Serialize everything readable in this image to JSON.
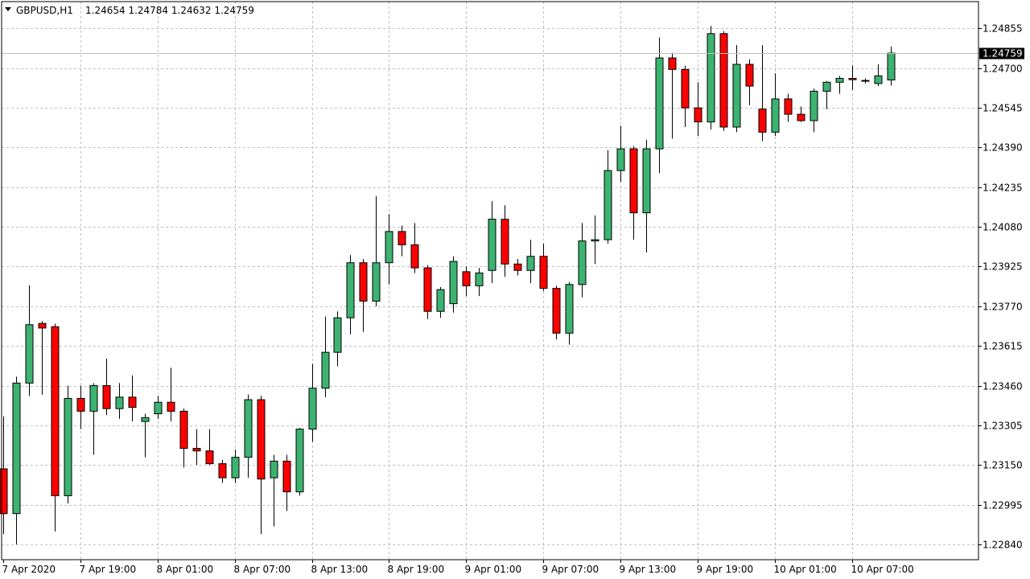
{
  "header": {
    "symbol": "GBPUSD,H1",
    "ohlc": "1.24654 1.24784 1.24632 1.24759"
  },
  "colors": {
    "bull": "#3cb371",
    "bear": "#ff0000",
    "grid": "#c0c0c0",
    "frame": "#000000",
    "tag_bg": "#000000"
  },
  "chart_data": {
    "type": "candlestick",
    "title": "GBPUSD,H1",
    "current_price": 1.24759,
    "current_price_label": "1.24759",
    "ylim": [
      1.2278,
      1.2496
    ],
    "y_ticks": [
      "1.24855",
      "1.24700",
      "1.24545",
      "1.24390",
      "1.24235",
      "1.24080",
      "1.23925",
      "1.23770",
      "1.23615",
      "1.23460",
      "1.23305",
      "1.23150",
      "1.22995",
      "1.22840"
    ],
    "x_ticks": [
      {
        "label": "7 Apr 2020",
        "index": 0
      },
      {
        "label": "7 Apr 19:00",
        "index": 6
      },
      {
        "label": "8 Apr 01:00",
        "index": 12
      },
      {
        "label": "8 Apr 07:00",
        "index": 18
      },
      {
        "label": "8 Apr 13:00",
        "index": 24
      },
      {
        "label": "8 Apr 19:00",
        "index": 30
      },
      {
        "label": "9 Apr 01:00",
        "index": 36
      },
      {
        "label": "9 Apr 07:00",
        "index": 42
      },
      {
        "label": "9 Apr 13:00",
        "index": 48
      },
      {
        "label": "9 Apr 19:00",
        "index": 54
      },
      {
        "label": "10 Apr 01:00",
        "index": 60
      },
      {
        "label": "10 Apr 07:00",
        "index": 66
      }
    ],
    "candles": [
      {
        "o": 1.23135,
        "h": 1.2334,
        "l": 1.2288,
        "c": 1.2296
      },
      {
        "o": 1.2296,
        "h": 1.23495,
        "l": 1.2284,
        "c": 1.2347
      },
      {
        "o": 1.2347,
        "h": 1.23852,
        "l": 1.2342,
        "c": 1.23698
      },
      {
        "o": 1.23703,
        "h": 1.23712,
        "l": 1.23425,
        "c": 1.23685
      },
      {
        "o": 1.2369,
        "h": 1.23702,
        "l": 1.2289,
        "c": 1.2303
      },
      {
        "o": 1.2303,
        "h": 1.2346,
        "l": 1.23,
        "c": 1.2341
      },
      {
        "o": 1.2341,
        "h": 1.2346,
        "l": 1.2329,
        "c": 1.2336
      },
      {
        "o": 1.2336,
        "h": 1.2347,
        "l": 1.2319,
        "c": 1.2346
      },
      {
        "o": 1.2346,
        "h": 1.23565,
        "l": 1.23345,
        "c": 1.2337
      },
      {
        "o": 1.2337,
        "h": 1.2347,
        "l": 1.2333,
        "c": 1.23415
      },
      {
        "o": 1.23415,
        "h": 1.235,
        "l": 1.2332,
        "c": 1.23375
      },
      {
        "o": 1.2332,
        "h": 1.2335,
        "l": 1.2318,
        "c": 1.23335
      },
      {
        "o": 1.2335,
        "h": 1.2342,
        "l": 1.2333,
        "c": 1.23395
      },
      {
        "o": 1.23395,
        "h": 1.2353,
        "l": 1.2332,
        "c": 1.2336
      },
      {
        "o": 1.2336,
        "h": 1.2337,
        "l": 1.2314,
        "c": 1.23215
      },
      {
        "o": 1.23215,
        "h": 1.2329,
        "l": 1.2315,
        "c": 1.23205
      },
      {
        "o": 1.23205,
        "h": 1.2329,
        "l": 1.2315,
        "c": 1.23155
      },
      {
        "o": 1.23155,
        "h": 1.2317,
        "l": 1.2308,
        "c": 1.231
      },
      {
        "o": 1.231,
        "h": 1.2321,
        "l": 1.2308,
        "c": 1.2318
      },
      {
        "o": 1.2318,
        "h": 1.23425,
        "l": 1.231,
        "c": 1.23405
      },
      {
        "o": 1.23405,
        "h": 1.2342,
        "l": 1.2288,
        "c": 1.23095
      },
      {
        "o": 1.231,
        "h": 1.2319,
        "l": 1.2291,
        "c": 1.23165
      },
      {
        "o": 1.23165,
        "h": 1.2319,
        "l": 1.2297,
        "c": 1.23045
      },
      {
        "o": 1.23045,
        "h": 1.23295,
        "l": 1.2303,
        "c": 1.2329
      },
      {
        "o": 1.2329,
        "h": 1.23545,
        "l": 1.2324,
        "c": 1.2345
      },
      {
        "o": 1.2345,
        "h": 1.2373,
        "l": 1.23415,
        "c": 1.2359
      },
      {
        "o": 1.2359,
        "h": 1.2375,
        "l": 1.23535,
        "c": 1.23725
      },
      {
        "o": 1.23725,
        "h": 1.2397,
        "l": 1.2366,
        "c": 1.2394
      },
      {
        "o": 1.2394,
        "h": 1.23955,
        "l": 1.2367,
        "c": 1.2379
      },
      {
        "o": 1.2379,
        "h": 1.242,
        "l": 1.2377,
        "c": 1.2394
      },
      {
        "o": 1.2394,
        "h": 1.2413,
        "l": 1.23855,
        "c": 1.24062
      },
      {
        "o": 1.24062,
        "h": 1.24085,
        "l": 1.23965,
        "c": 1.2401
      },
      {
        "o": 1.2401,
        "h": 1.24095,
        "l": 1.239,
        "c": 1.2392
      },
      {
        "o": 1.2392,
        "h": 1.2393,
        "l": 1.2372,
        "c": 1.2375
      },
      {
        "o": 1.2375,
        "h": 1.23845,
        "l": 1.23725,
        "c": 1.23835
      },
      {
        "o": 1.2378,
        "h": 1.23965,
        "l": 1.23745,
        "c": 1.23945
      },
      {
        "o": 1.23905,
        "h": 1.23925,
        "l": 1.2381,
        "c": 1.2385
      },
      {
        "o": 1.2385,
        "h": 1.2392,
        "l": 1.2381,
        "c": 1.239
      },
      {
        "o": 1.2391,
        "h": 1.2418,
        "l": 1.2386,
        "c": 1.2411
      },
      {
        "o": 1.2411,
        "h": 1.24165,
        "l": 1.23885,
        "c": 1.23935
      },
      {
        "o": 1.23935,
        "h": 1.23955,
        "l": 1.2389,
        "c": 1.2391
      },
      {
        "o": 1.2391,
        "h": 1.2403,
        "l": 1.2386,
        "c": 1.23965
      },
      {
        "o": 1.23965,
        "h": 1.24015,
        "l": 1.2383,
        "c": 1.2384
      },
      {
        "o": 1.2384,
        "h": 1.2385,
        "l": 1.2364,
        "c": 1.23665
      },
      {
        "o": 1.23665,
        "h": 1.23865,
        "l": 1.2362,
        "c": 1.23855
      },
      {
        "o": 1.23855,
        "h": 1.24095,
        "l": 1.23805,
        "c": 1.24025
      },
      {
        "o": 1.24025,
        "h": 1.24125,
        "l": 1.23935,
        "c": 1.2403
      },
      {
        "o": 1.2403,
        "h": 1.2438,
        "l": 1.24015,
        "c": 1.243
      },
      {
        "o": 1.243,
        "h": 1.24475,
        "l": 1.24255,
        "c": 1.24385
      },
      {
        "o": 1.24385,
        "h": 1.24395,
        "l": 1.2403,
        "c": 1.24135
      },
      {
        "o": 1.24135,
        "h": 1.2442,
        "l": 1.2398,
        "c": 1.24385
      },
      {
        "o": 1.24385,
        "h": 1.2482,
        "l": 1.2429,
        "c": 1.2474
      },
      {
        "o": 1.2474,
        "h": 1.2476,
        "l": 1.24425,
        "c": 1.24695
      },
      {
        "o": 1.24695,
        "h": 1.2471,
        "l": 1.2447,
        "c": 1.24545
      },
      {
        "o": 1.24545,
        "h": 1.24645,
        "l": 1.24435,
        "c": 1.2449
      },
      {
        "o": 1.2449,
        "h": 1.24865,
        "l": 1.2446,
        "c": 1.24835
      },
      {
        "o": 1.24835,
        "h": 1.24845,
        "l": 1.24455,
        "c": 1.2447
      },
      {
        "o": 1.2447,
        "h": 1.2479,
        "l": 1.2445,
        "c": 1.24715
      },
      {
        "o": 1.24715,
        "h": 1.24735,
        "l": 1.24555,
        "c": 1.2463
      },
      {
        "o": 1.2454,
        "h": 1.2479,
        "l": 1.24415,
        "c": 1.2445
      },
      {
        "o": 1.2445,
        "h": 1.2468,
        "l": 1.24435,
        "c": 1.2458
      },
      {
        "o": 1.2458,
        "h": 1.246,
        "l": 1.2449,
        "c": 1.2452
      },
      {
        "o": 1.2452,
        "h": 1.2455,
        "l": 1.2449,
        "c": 1.24495
      },
      {
        "o": 1.24495,
        "h": 1.2462,
        "l": 1.2445,
        "c": 1.2461
      },
      {
        "o": 1.2461,
        "h": 1.2465,
        "l": 1.2454,
        "c": 1.24645
      },
      {
        "o": 1.24645,
        "h": 1.2467,
        "l": 1.246,
        "c": 1.2466
      },
      {
        "o": 1.2466,
        "h": 1.2471,
        "l": 1.24615,
        "c": 1.24655
      },
      {
        "o": 1.2465,
        "h": 1.2466,
        "l": 1.2464,
        "c": 1.24652
      },
      {
        "o": 1.2464,
        "h": 1.24715,
        "l": 1.2463,
        "c": 1.2467
      },
      {
        "o": 1.24654,
        "h": 1.24784,
        "l": 1.24632,
        "c": 1.24759
      }
    ]
  }
}
